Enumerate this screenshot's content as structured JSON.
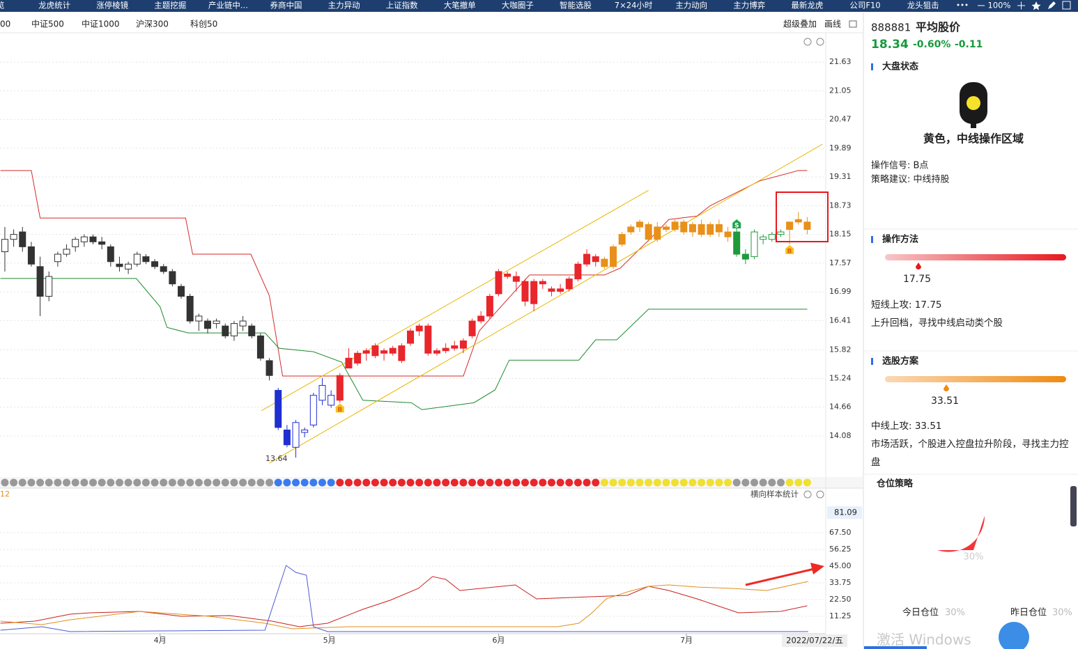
{
  "nav": {
    "tabs": [
      "总览",
      "龙虎统计",
      "涨停棱镜",
      "主题挖掘",
      "产业链中...",
      "券商中国",
      "主力异动",
      "上证指数",
      "大笔撤单",
      "大咖圈子",
      "智能选股",
      "7×24小时",
      "主力动向",
      "主力博弈",
      "最新龙虎",
      "公司F10",
      "龙头狙击"
    ],
    "zoom": "100%"
  },
  "toolbar": {
    "indices": [
      "00",
      "中证500",
      "中证1000",
      "沪深300",
      "科创50"
    ],
    "overlay": "超级叠加",
    "draw": "画线"
  },
  "chart_data": [
    {
      "type": "candlestick",
      "xlim": [
        -0.55,
        93.1
      ],
      "ylim": [
        13.32,
        21.9
      ],
      "yticks": [
        21.63,
        21.05,
        20.47,
        19.89,
        19.31,
        18.73,
        18.15,
        17.57,
        16.99,
        16.41,
        15.82,
        15.24,
        14.66,
        14.08
      ],
      "candles": [
        [
          17.8,
          18.3,
          17.4,
          18.05
        ],
        [
          18.05,
          18.25,
          17.9,
          18.15
        ],
        [
          18.2,
          18.3,
          17.8,
          17.9
        ],
        [
          17.9,
          18.0,
          17.5,
          17.55
        ],
        [
          17.5,
          17.7,
          16.5,
          16.9
        ],
        [
          16.9,
          17.4,
          16.8,
          17.3
        ],
        [
          17.6,
          17.8,
          17.5,
          17.75
        ],
        [
          17.75,
          17.95,
          17.7,
          17.85
        ],
        [
          17.9,
          18.1,
          17.8,
          18.05
        ],
        [
          18.0,
          18.15,
          17.9,
          18.1
        ],
        [
          18.1,
          18.15,
          17.95,
          18.0
        ],
        [
          18.0,
          18.1,
          17.85,
          17.95
        ],
        [
          17.9,
          17.95,
          17.5,
          17.6
        ],
        [
          17.55,
          17.7,
          17.4,
          17.5
        ],
        [
          17.45,
          17.6,
          17.35,
          17.55
        ],
        [
          17.55,
          17.8,
          17.5,
          17.75
        ],
        [
          17.7,
          17.75,
          17.55,
          17.6
        ],
        [
          17.6,
          17.65,
          17.45,
          17.5
        ],
        [
          17.5,
          17.55,
          17.35,
          17.4
        ],
        [
          17.4,
          17.45,
          17.1,
          17.15
        ],
        [
          17.1,
          17.15,
          16.85,
          16.9
        ],
        [
          16.9,
          16.95,
          16.35,
          16.4
        ],
        [
          16.4,
          16.55,
          16.2,
          16.5
        ],
        [
          16.4,
          16.45,
          16.15,
          16.25
        ],
        [
          16.35,
          16.45,
          16.25,
          16.4
        ],
        [
          16.3,
          16.35,
          16.05,
          16.1
        ],
        [
          16.1,
          16.4,
          16.0,
          16.35
        ],
        [
          16.3,
          16.5,
          16.2,
          16.4
        ],
        [
          16.3,
          16.35,
          16.05,
          16.1
        ],
        [
          16.1,
          16.15,
          15.6,
          15.65
        ],
        [
          15.6,
          15.65,
          15.2,
          15.3
        ],
        [
          15.0,
          15.05,
          14.2,
          14.25
        ],
        [
          14.2,
          14.3,
          13.85,
          13.9
        ],
        [
          13.85,
          14.4,
          13.64,
          14.35
        ],
        [
          14.15,
          14.25,
          14.05,
          14.2
        ],
        [
          14.3,
          14.95,
          14.25,
          14.9
        ],
        [
          14.8,
          15.25,
          14.7,
          15.1
        ],
        [
          14.7,
          15.0,
          14.65,
          14.9
        ],
        [
          15.3,
          15.35,
          14.75,
          14.8
        ],
        [
          15.45,
          15.85,
          15.45,
          15.65
        ],
        [
          15.55,
          15.8,
          15.5,
          15.75
        ],
        [
          15.75,
          15.85,
          15.6,
          15.8
        ],
        [
          15.7,
          15.95,
          15.65,
          15.9
        ],
        [
          15.8,
          15.85,
          15.6,
          15.75
        ],
        [
          15.75,
          15.9,
          15.7,
          15.85
        ],
        [
          15.6,
          15.95,
          15.55,
          15.9
        ],
        [
          15.95,
          16.25,
          15.9,
          16.2
        ],
        [
          16.2,
          16.35,
          16.1,
          16.3
        ],
        [
          16.3,
          16.35,
          15.7,
          15.75
        ],
        [
          15.75,
          15.85,
          15.7,
          15.8
        ],
        [
          15.8,
          15.95,
          15.75,
          15.85
        ],
        [
          15.85,
          16.0,
          15.8,
          15.9
        ],
        [
          15.85,
          16.05,
          15.75,
          16.0
        ],
        [
          16.1,
          16.45,
          16.05,
          16.4
        ],
        [
          16.4,
          16.6,
          16.35,
          16.5
        ],
        [
          16.5,
          16.95,
          16.45,
          16.9
        ],
        [
          16.95,
          17.45,
          16.9,
          17.4
        ],
        [
          17.35,
          17.4,
          17.25,
          17.3
        ],
        [
          17.3,
          17.4,
          17.0,
          17.2
        ],
        [
          17.2,
          17.25,
          16.7,
          16.8
        ],
        [
          16.75,
          17.25,
          16.6,
          17.2
        ],
        [
          17.15,
          17.25,
          17.05,
          17.2
        ],
        [
          17.05,
          17.1,
          16.9,
          17.0
        ],
        [
          17.0,
          17.15,
          16.95,
          17.05
        ],
        [
          17.05,
          17.3,
          17.0,
          17.25
        ],
        [
          17.25,
          17.6,
          17.2,
          17.55
        ],
        [
          17.55,
          17.85,
          17.5,
          17.75
        ],
        [
          17.6,
          17.75,
          17.5,
          17.7
        ],
        [
          17.65,
          17.7,
          17.45,
          17.5
        ],
        [
          17.5,
          17.95,
          17.45,
          17.9
        ],
        [
          17.95,
          18.2,
          17.9,
          18.15
        ],
        [
          18.2,
          18.35,
          18.15,
          18.3
        ],
        [
          18.3,
          18.45,
          18.2,
          18.4
        ],
        [
          18.35,
          18.4,
          18.0,
          18.05
        ],
        [
          18.05,
          18.4,
          18.0,
          18.3
        ],
        [
          18.25,
          18.35,
          18.2,
          18.3
        ],
        [
          18.25,
          18.45,
          18.2,
          18.4
        ],
        [
          18.4,
          18.45,
          18.15,
          18.2
        ],
        [
          18.2,
          18.4,
          18.1,
          18.35
        ],
        [
          18.35,
          18.45,
          18.1,
          18.15
        ],
        [
          18.15,
          18.4,
          18.1,
          18.35
        ],
        [
          18.35,
          18.45,
          18.1,
          18.2
        ],
        [
          18.2,
          18.3,
          18.0,
          18.1
        ],
        [
          18.2,
          18.3,
          17.7,
          17.75
        ],
        [
          17.75,
          17.85,
          17.55,
          17.65
        ],
        [
          17.7,
          18.25,
          17.65,
          18.2
        ],
        [
          18.05,
          18.15,
          17.95,
          18.1
        ],
        [
          18.05,
          18.2,
          18.0,
          18.15
        ],
        [
          18.15,
          18.25,
          18.1,
          18.2
        ],
        [
          18.25,
          18.4,
          17.95,
          18.4
        ],
        [
          18.4,
          18.6,
          18.35,
          18.45
        ],
        [
          18.4,
          18.5,
          18.15,
          18.25
        ]
      ],
      "candle_colors": [
        "#333",
        "#333",
        "#333",
        "#333",
        "#333",
        "#333",
        "#333",
        "#333",
        "#333",
        "#333",
        "#333",
        "#333",
        "#333",
        "#333",
        "#333",
        "#333",
        "#333",
        "#333",
        "#333",
        "#333",
        "#333",
        "#333",
        "#333",
        "#333",
        "#333",
        "#333",
        "#333",
        "#333",
        "#333",
        "#333",
        "#333",
        "#1f2fd0",
        "#1f2fd0",
        "#1f2fd0",
        "#1f2fd0",
        "#1f2fd0",
        "#1f2fd0",
        "#1f2fd0",
        "#e8262b",
        "#e8262b",
        "#e8262b",
        "#e8262b",
        "#e8262b",
        "#e8262b",
        "#e8262b",
        "#e8262b",
        "#e8262b",
        "#e8262b",
        "#e8262b",
        "#e8262b",
        "#e8262b",
        "#e8262b",
        "#e8262b",
        "#e8262b",
        "#e8262b",
        "#e8262b",
        "#e8262b",
        "#e8262b",
        "#e8262b",
        "#e8262b",
        "#e8262b",
        "#e8262b",
        "#e8262b",
        "#e8262b",
        "#e8262b",
        "#e8262b",
        "#e8262b",
        "#e8262b",
        "#e8901a",
        "#e8901a",
        "#e8901a",
        "#e8901a",
        "#e8901a",
        "#e8901a",
        "#e8901a",
        "#e8901a",
        "#e8901a",
        "#e8901a",
        "#e8901a",
        "#e8901a",
        "#e8901a",
        "#e8901a",
        "#e8901a",
        "#1e9a3a",
        "#1e9a3a",
        "#1e9a3a",
        "#1e9a3a",
        "#1e9a3a",
        "#1e9a3a",
        "#e8901a",
        "#e8901a",
        "#e8901a"
      ],
      "hollow_when_rising": [
        "#333",
        "#1f2fd0",
        "#1e9a3a"
      ],
      "signal_colors": [
        "#999",
        "#999",
        "#999",
        "#999",
        "#999",
        "#999",
        "#999",
        "#999",
        "#999",
        "#999",
        "#999",
        "#999",
        "#999",
        "#999",
        "#999",
        "#999",
        "#999",
        "#999",
        "#999",
        "#999",
        "#999",
        "#999",
        "#999",
        "#999",
        "#999",
        "#999",
        "#999",
        "#999",
        "#999",
        "#999",
        "#999",
        "#3a7cf0",
        "#3a7cf0",
        "#3a7cf0",
        "#3a7cf0",
        "#3a7cf0",
        "#3a7cf0",
        "#3a7cf0",
        "#e8262b",
        "#e8262b",
        "#e8262b",
        "#e8262b",
        "#e8262b",
        "#e8262b",
        "#e8262b",
        "#e8262b",
        "#e8262b",
        "#e8262b",
        "#e8262b",
        "#e8262b",
        "#e8262b",
        "#e8262b",
        "#e8262b",
        "#e8262b",
        "#e8262b",
        "#e8262b",
        "#e8262b",
        "#e8262b",
        "#e8262b",
        "#e8262b",
        "#e8262b",
        "#e8262b",
        "#e8262b",
        "#e8262b",
        "#e8262b",
        "#e8262b",
        "#e8262b",
        "#e8262b",
        "#f0e030",
        "#f0e030",
        "#f0e030",
        "#f0e030",
        "#f0e030",
        "#f0e030",
        "#f0e030",
        "#f0e030",
        "#f0e030",
        "#f0e030",
        "#f0e030",
        "#f0e030",
        "#f0e030",
        "#f0e030",
        "#f0e030",
        "#999",
        "#999",
        "#999",
        "#999",
        "#999",
        "#999",
        "#f0e030",
        "#f0e030",
        "#f0e030"
      ],
      "lines": [
        {
          "color": "#d42a2a",
          "x": [
            -0.5,
            3,
            4,
            20.5,
            21.3,
            27.9,
            30,
            31.5,
            52,
            53.8,
            55.2,
            59.5,
            68,
            69.8,
            73.8,
            75.3,
            78.5,
            80,
            85.6,
            90,
            91
          ],
          "values": [
            19.44,
            19.44,
            18.48,
            18.48,
            17.75,
            17.75,
            16.91,
            15.29,
            15.29,
            16.2,
            16.48,
            17.33,
            17.33,
            17.47,
            18.17,
            18.45,
            18.52,
            18.73,
            19.23,
            19.44,
            19.44
          ]
        },
        {
          "color": "#1e8a2e",
          "x": [
            -0.5,
            14.9,
            17.6,
            18.4,
            20.8,
            29.5,
            31.1,
            35,
            38.2,
            40.6,
            46.1,
            47.3,
            53.2,
            55.6,
            57.2,
            65.1,
            67,
            69.4,
            73,
            91
          ],
          "values": [
            17.26,
            17.26,
            16.69,
            16.27,
            16.16,
            16.16,
            15.85,
            15.78,
            15.57,
            14.8,
            14.75,
            14.61,
            14.75,
            15.01,
            15.61,
            15.61,
            16.02,
            16.02,
            16.64,
            16.64
          ]
        },
        {
          "color": "#e8b800",
          "x": [
            29.1,
            73
          ],
          "values": [
            14.59,
            19.04
          ]
        },
        {
          "color": "#e8b800",
          "x": [
            30,
            92.7
          ],
          "values": [
            13.53,
            19.97
          ]
        }
      ],
      "low_label_index": 33,
      "markers": [
        {
          "label": "B",
          "index": 38,
          "position": "below"
        },
        {
          "label": "S",
          "index": 83,
          "position": "above"
        },
        {
          "label": "B",
          "index": 89,
          "position": "below"
        }
      ]
    },
    {
      "type": "line",
      "title": "横向样本统计",
      "legend_label": "12",
      "xlim": [
        -0.55,
        93.1
      ],
      "ylim": [
        0,
        88.6
      ],
      "current_value": 81.09,
      "yticks": [
        {
          "value": 67.5,
          "label": "67.50"
        },
        56.25,
        {
          "value": 45,
          "label": "45.00"
        },
        33.75,
        {
          "value": 22.5,
          "label": "22.50"
        },
        11.25
      ],
      "xticks": [
        {
          "value": 17.6,
          "label": "4月"
        },
        {
          "value": 36.8,
          "label": "5月"
        },
        {
          "value": 56,
          "label": "6月"
        },
        {
          "value": 77.3,
          "label": "7月"
        }
      ],
      "date_label": "2022/07/22/五",
      "series": [
        {
          "color": "#c8201e",
          "x": [
            -0.5,
            3.4,
            7.4,
            9.7,
            15.3,
            20,
            25.5,
            30.3,
            33.4,
            36.6,
            40.6,
            43.7,
            46.9,
            48.5,
            50,
            51.6,
            57.9,
            60.3,
            64.3,
            70.6,
            73,
            75.3,
            78.5,
            83.2,
            88,
            91
          ],
          "values": [
            6.56,
            7.97,
            12.66,
            13.59,
            14.53,
            11.25,
            11.72,
            7.97,
            4.22,
            6.56,
            15.94,
            22.03,
            30.0,
            37.97,
            36.09,
            28.6,
            32.34,
            22.97,
            23.91,
            25.31,
            31.41,
            28.6,
            22.97,
            13.59,
            14.53,
            18.28
          ]
        },
        {
          "color": "#e0901a",
          "x": [
            -0.5,
            4.2,
            7.4,
            15.3,
            23.2,
            29.5,
            32.6,
            39,
            62.7,
            65.1,
            66.6,
            68.2,
            70.6,
            73,
            75.3,
            78.5,
            82.5,
            86.4,
            91.1
          ],
          "values": [
            7.97,
            5.63,
            8.91,
            14.53,
            11.25,
            6.56,
            2.81,
            4.22,
            4.22,
            6.56,
            13.59,
            22.97,
            27.66,
            31.41,
            32.34,
            30.94,
            30.0,
            28.6,
            34.69
          ]
        },
        {
          "color": "#4a5ad8",
          "x": [
            -0.5,
            4.2,
            7.4,
            29.5,
            31.9,
            33,
            34.2,
            35,
            36.6,
            91.1
          ],
          "values": [
            1.88,
            4.22,
            0.94,
            1.88,
            45.47,
            40.78,
            38.91,
            4.22,
            0.94,
            0.94
          ]
        }
      ]
    }
  ],
  "panel": {
    "code": "888881",
    "name": "平均股价",
    "price": "18.34",
    "change_pct": "-0.60%",
    "change": "-0.11",
    "market": {
      "title": "大盘状态",
      "status": "黄色，中线操作区域",
      "signal": "操作信号: B点",
      "advice": "策略建议: 中线持股"
    },
    "method": {
      "title": "操作方法",
      "value": "17.75",
      "label": "短线上攻: ",
      "note": "上升回档，寻找中线启动类个股"
    },
    "selection": {
      "title": "选股方案",
      "value": "33.51",
      "label": "中线上攻: ",
      "note": "市场活跃，个股进入控盘拉升阶段，寻找主力控盘"
    },
    "position": {
      "title": "仓位策略",
      "value": 30,
      "value_label": "30%",
      "today": "今日仓位",
      "today_value": "30%",
      "yesterday": "昨日仓位",
      "yesterday_value": "30%"
    }
  },
  "watermark": "激活 Windows"
}
